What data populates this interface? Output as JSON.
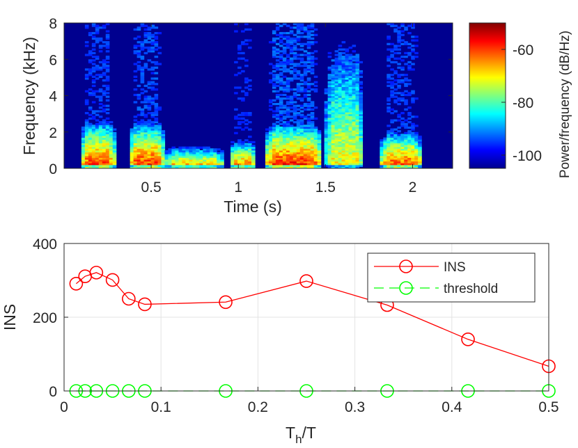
{
  "chart_data": [
    {
      "type": "heatmap",
      "title": "",
      "xlabel": "Time (s)",
      "ylabel": "Frequency (kHz)",
      "xlim": [
        0,
        2.23
      ],
      "ylim": [
        0,
        8
      ],
      "x_ticks": [
        "0.5",
        "1",
        "1.5",
        "2"
      ],
      "y_ticks": [
        "0",
        "2",
        "4",
        "6",
        "8"
      ],
      "colorbar": {
        "label": "Power/frequency (dB/Hz)",
        "range": [
          -105,
          -50
        ],
        "ticks": [
          "-60",
          "-80",
          "-100"
        ],
        "colormap": "jet",
        "colors": [
          "#00008f",
          "#0000ff",
          "#00bfff",
          "#7fff7f",
          "#ffbf00",
          "#ff0000",
          "#800000"
        ]
      },
      "regions": [
        {
          "t0": 0.1,
          "t1": 0.29,
          "f_top_khz": 2.6,
          "peak_db": -58
        },
        {
          "t0": 0.38,
          "t1": 0.57,
          "f_top_khz": 2.5,
          "peak_db": -57
        },
        {
          "t0": 0.57,
          "t1": 0.92,
          "f_top_khz": 1.2,
          "peak_db": -62
        },
        {
          "t0": 0.95,
          "t1": 1.1,
          "f_top_khz": 1.5,
          "peak_db": -60
        },
        {
          "t0": 1.15,
          "t1": 1.48,
          "f_top_khz": 2.4,
          "peak_db": -56
        },
        {
          "t0": 1.5,
          "t1": 1.72,
          "f_top_khz": 8.0,
          "peak_db": -70
        },
        {
          "t0": 1.82,
          "t1": 2.05,
          "f_top_khz": 2.0,
          "peak_db": -58
        }
      ]
    },
    {
      "type": "line",
      "title": "",
      "xlabel": "T_h/T",
      "xlabel_main": "T",
      "xlabel_sub": "h",
      "xlabel_rest": "/T",
      "ylabel": "INS",
      "xlim": [
        0,
        0.5
      ],
      "ylim": [
        0,
        400
      ],
      "x_ticks": [
        "0",
        "0.1",
        "0.2",
        "0.3",
        "0.4",
        "0.5"
      ],
      "y_ticks": [
        "0",
        "200",
        "400"
      ],
      "grid": true,
      "legend_position": "top-right",
      "series": [
        {
          "name": "INS",
          "color": "#ff0000",
          "line_style": "solid",
          "marker": "circle",
          "x": [
            0.0125,
            0.0217,
            0.0333,
            0.05,
            0.0667,
            0.0833,
            0.1667,
            0.25,
            0.3333,
            0.4167,
            0.5
          ],
          "y": [
            291,
            311,
            321,
            301,
            250,
            235,
            241,
            298,
            233,
            140,
            67
          ]
        },
        {
          "name": "threshold",
          "color": "#00ff00",
          "line_style": "dashed",
          "marker": "circle",
          "x": [
            0.0125,
            0.0217,
            0.0333,
            0.05,
            0.0667,
            0.0833,
            0.1667,
            0.25,
            0.3333,
            0.4167,
            0.5
          ],
          "y": [
            0,
            0,
            0,
            0,
            0,
            0,
            0,
            0,
            0,
            0,
            0
          ]
        }
      ]
    }
  ]
}
